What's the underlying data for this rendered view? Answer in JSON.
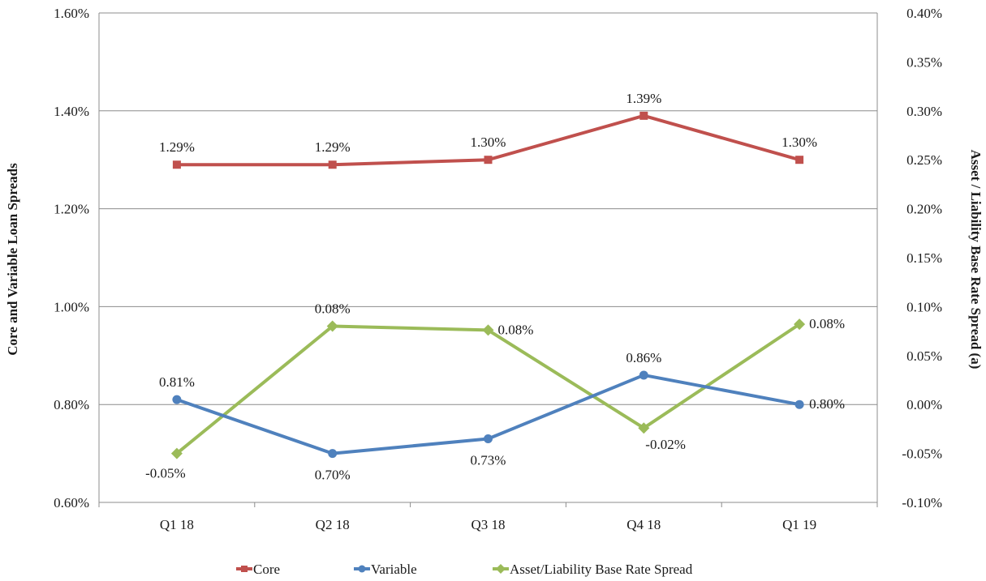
{
  "chart_data": {
    "type": "line",
    "categories": [
      "Q1 18",
      "Q2 18",
      "Q3 18",
      "Q4 18",
      "Q1 19"
    ],
    "ylabel": "Core and Variable Loan Spreads",
    "y2label": "Asset / Liability Base Rate Spread (a)",
    "ylim": [
      0.6,
      1.6
    ],
    "y2lim": [
      -0.1,
      0.4
    ],
    "yticks": [
      "0.60%",
      "0.80%",
      "1.00%",
      "1.20%",
      "1.40%",
      "1.60%"
    ],
    "y2ticks": [
      "-0.10%",
      "-0.05%",
      "0.00%",
      "0.05%",
      "0.10%",
      "0.15%",
      "0.20%",
      "0.25%",
      "0.30%",
      "0.35%",
      "0.40%"
    ],
    "grid": "horizontal",
    "legend_position": "bottom",
    "series": [
      {
        "name": "Core",
        "axis": "left",
        "marker": "square",
        "color": "#c0504d",
        "values": [
          1.29,
          1.29,
          1.3,
          1.39,
          1.3
        ],
        "labels": [
          "1.29%",
          "1.29%",
          "1.30%",
          "1.39%",
          "1.30%"
        ],
        "label_positions": [
          "above",
          "above",
          "above",
          "above",
          "above"
        ]
      },
      {
        "name": "Variable",
        "axis": "left",
        "marker": "circle",
        "color": "#4f81bd",
        "values": [
          0.81,
          0.7,
          0.73,
          0.86,
          0.8
        ],
        "labels": [
          "0.81%",
          "0.70%",
          "0.73%",
          "0.86%",
          "0.80%"
        ],
        "label_positions": [
          "above",
          "below",
          "below",
          "above",
          "right"
        ]
      },
      {
        "name": "Asset/Liability Base Rate Spread",
        "axis": "right",
        "marker": "diamond",
        "color": "#9bbb59",
        "values": [
          -0.05,
          0.08,
          0.076,
          -0.024,
          0.082
        ],
        "labels": [
          "-0.05%",
          "0.08%",
          "0.08%",
          "-0.02%",
          "0.08%"
        ],
        "label_positions": [
          "below",
          "above",
          "right",
          "below-right",
          "right"
        ]
      }
    ]
  }
}
